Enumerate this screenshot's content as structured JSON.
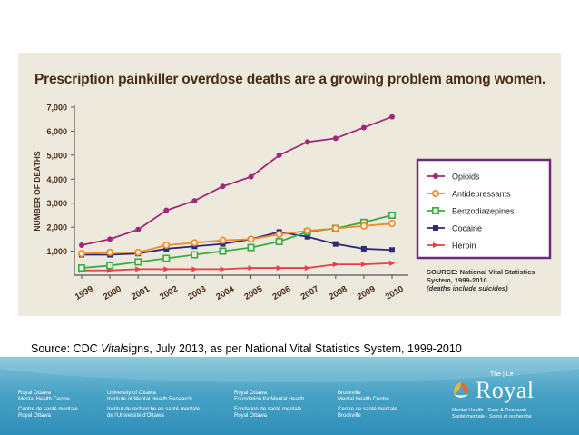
{
  "chart_data": {
    "type": "line",
    "title": "Prescription painkiller overdose deaths are a growing problem among women.",
    "xlabel": "",
    "ylabel": "NUMBER OF DEATHS",
    "x": [
      "1999",
      "2000",
      "2001",
      "2002",
      "2003",
      "2004",
      "2005",
      "2006",
      "2007",
      "2008",
      "2009",
      "2010"
    ],
    "y_ticks": [
      "1,000",
      "2,000",
      "3,000",
      "4,000",
      "5,000",
      "6,000",
      "7,000"
    ],
    "ylim": [
      0,
      7000
    ],
    "grid": false,
    "legend_position": "right",
    "series": [
      {
        "name": "Opioids",
        "color": "#a0287c",
        "marker": "circle-filled",
        "values": [
          1250,
          1500,
          1900,
          2700,
          3100,
          3700,
          4100,
          5000,
          5550,
          5700,
          6150,
          6600
        ]
      },
      {
        "name": "Antidepressants",
        "color": "#f08a2a",
        "marker": "circle-open",
        "values": [
          900,
          950,
          950,
          1250,
          1350,
          1450,
          1500,
          1700,
          1850,
          1950,
          2050,
          2150
        ]
      },
      {
        "name": "Benzodiazepines",
        "color": "#3aab48",
        "marker": "square-open",
        "values": [
          300,
          400,
          550,
          700,
          850,
          1000,
          1150,
          1400,
          1800,
          1950,
          2200,
          2500
        ]
      },
      {
        "name": "Cocaine",
        "color": "#2c2a7a",
        "marker": "square-filled",
        "values": [
          850,
          850,
          900,
          1100,
          1200,
          1300,
          1500,
          1800,
          1600,
          1300,
          1100,
          1050
        ]
      },
      {
        "name": "Heroin",
        "color": "#e8404a",
        "marker": "arrow",
        "values": [
          200,
          200,
          250,
          250,
          250,
          250,
          300,
          300,
          300,
          450,
          450,
          500
        ]
      }
    ],
    "source_note": {
      "line1": "SOURCE: National Vital Statistics",
      "line2": "System, 1999-2010",
      "line3": "(deaths include suicides)"
    }
  },
  "caption": {
    "prefix": "Source: CDC ",
    "italic": "Vital",
    "suffix": "signs, July 2013, as per National Vital Statistics System, 1999-2010"
  },
  "footer": {
    "columns": [
      {
        "en1": "Royal Ottawa",
        "en2": "Mental Health Centre",
        "fr1": "Centre de santé mentale",
        "fr2": "Royal Ottawa"
      },
      {
        "en1": "University of Ottawa",
        "en2": "Institute of Mental Health Research",
        "fr1": "Institut de recherche en santé mentale",
        "fr2": "de l'Université d'Ottawa"
      },
      {
        "en1": "Royal Ottawa",
        "en2": "Foundation for Mental Health",
        "fr1": "Fondation de santé mentale",
        "fr2": "Royal Ottawa"
      },
      {
        "en1": "Brockville",
        "en2": "Mental Health Centre",
        "fr1": "Centre de santé mentale",
        "fr2": "Brockville"
      }
    ],
    "brand": {
      "the": "The | Le",
      "name": "Royal",
      "tag1": "Mental Health · Care & Research",
      "tag2": "Santé mentale · Soins et recherche"
    }
  },
  "colors": {
    "panel_bg": "#ede9dd",
    "title": "#4a2c14",
    "legend_border": "#6b2a7e"
  }
}
